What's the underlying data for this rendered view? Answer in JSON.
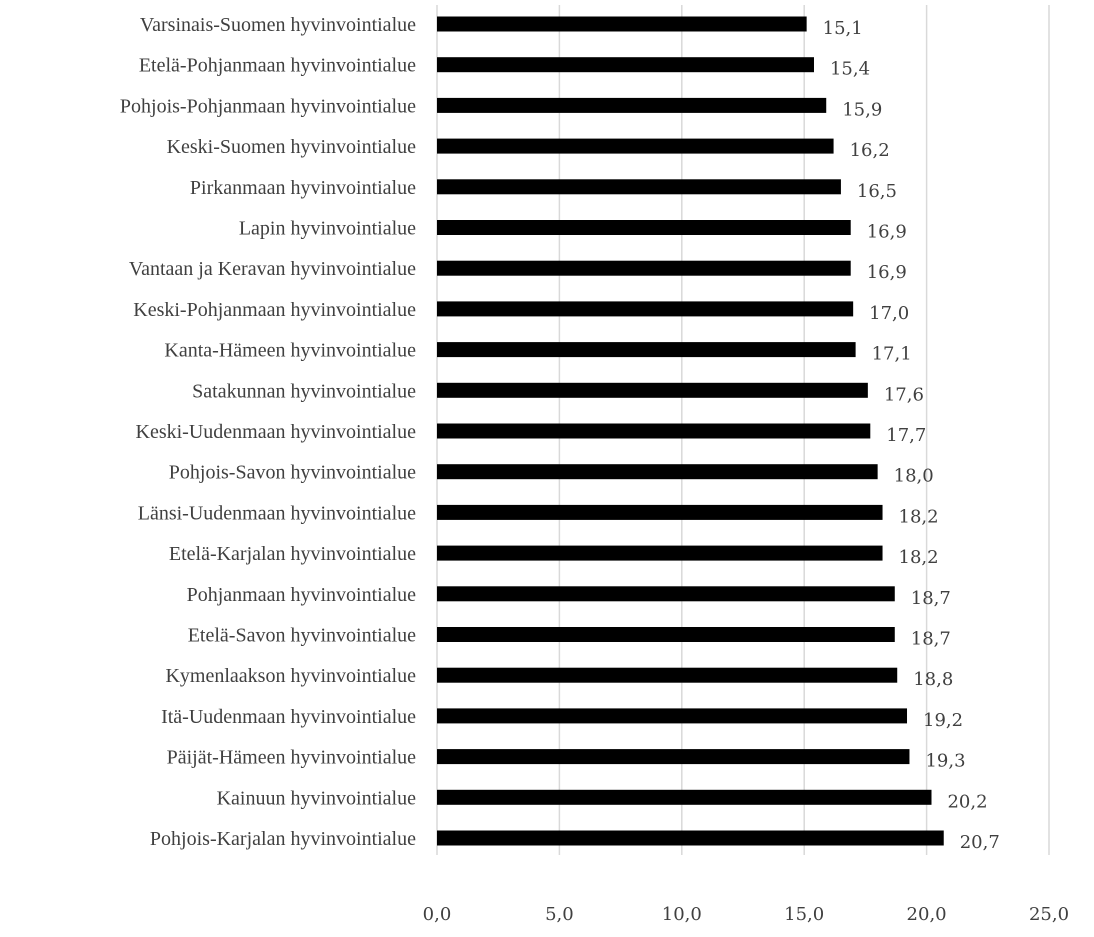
{
  "chart_data": {
    "type": "bar",
    "orientation": "horizontal",
    "categories": [
      "Varsinais-Suomen hyvinvointialue",
      "Etelä-Pohjanmaan hyvinvointialue",
      "Pohjois-Pohjanmaan hyvinvointialue",
      "Keski-Suomen hyvinvointialue",
      "Pirkanmaan hyvinvointialue",
      "Lapin hyvinvointialue",
      "Vantaan ja Keravan hyvinvointialue",
      "Keski-Pohjanmaan hyvinvointialue",
      "Kanta-Hämeen hyvinvointialue",
      "Satakunnan hyvinvointialue",
      "Keski-Uudenmaan hyvinvointialue",
      "Pohjois-Savon hyvinvointialue",
      "Länsi-Uudenmaan hyvinvointialue",
      "Etelä-Karjalan hyvinvointialue",
      "Pohjanmaan hyvinvointialue",
      "Etelä-Savon hyvinvointialue",
      "Kymenlaakson hyvinvointialue",
      "Itä-Uudenmaan hyvinvointialue",
      "Päijät-Hämeen hyvinvointialue",
      "Kainuun hyvinvointialue",
      "Pohjois-Karjalan hyvinvointialue"
    ],
    "values": [
      15.1,
      15.4,
      15.9,
      16.2,
      16.5,
      16.9,
      16.9,
      17.0,
      17.1,
      17.6,
      17.7,
      18.0,
      18.2,
      18.2,
      18.7,
      18.7,
      18.8,
      19.2,
      19.3,
      20.2,
      20.7
    ],
    "value_labels": [
      "15,1",
      "15,4",
      "15,9",
      "16,2",
      "16,5",
      "16,9",
      "16,9",
      "17,0",
      "17,1",
      "17,6",
      "17,7",
      "18,0",
      "18,2",
      "18,2",
      "18,7",
      "18,7",
      "18,8",
      "19,2",
      "19,3",
      "20,2",
      "20,7"
    ],
    "x_ticks": [
      0,
      5,
      10,
      15,
      20,
      25
    ],
    "x_tick_labels": [
      "0,0",
      "5,0",
      "10,0",
      "15,0",
      "20,0",
      "25,0"
    ],
    "xlim": [
      0,
      25
    ],
    "title": "",
    "xlabel": "",
    "ylabel": "",
    "grid": "vertical",
    "legend": "none",
    "colors": {
      "bar": "#000000",
      "grid": "#d9d9d9",
      "text": "#404040"
    }
  }
}
